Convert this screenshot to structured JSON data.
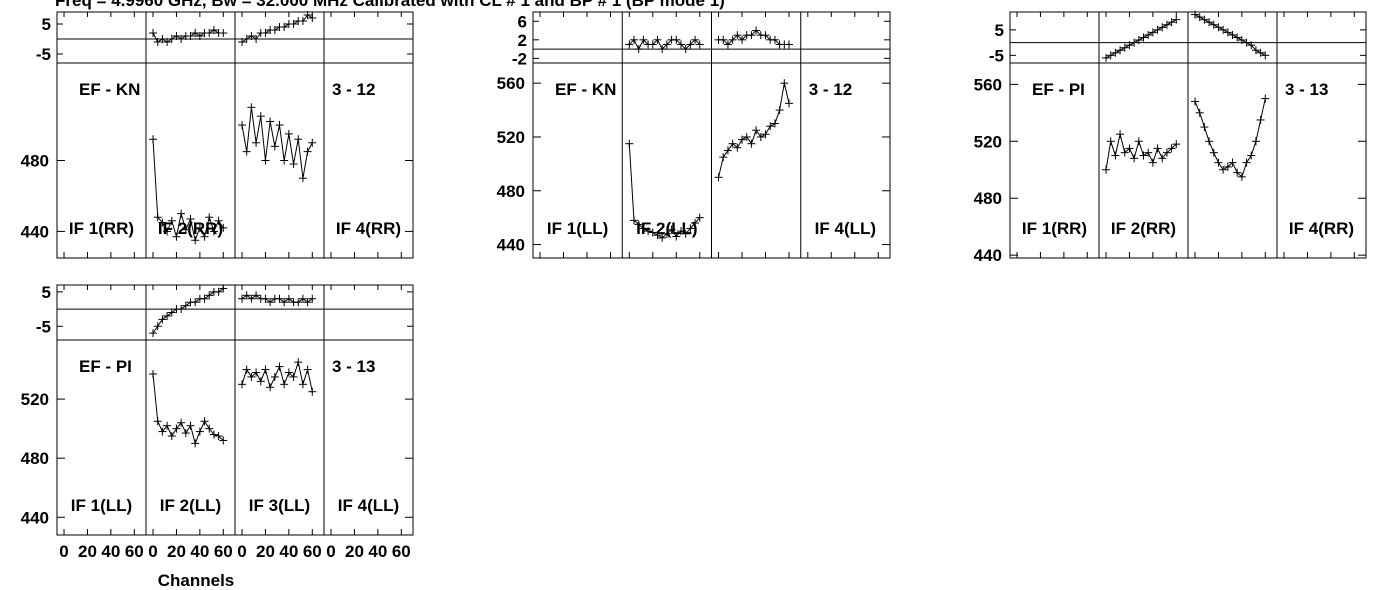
{
  "header": {
    "title": "Freq = 4.9960 GHz, Bw = 32.000 MHz  Calibrated with CL # 1 and BP # 1 (BP mode 1)"
  },
  "footer": {
    "xlabel": "Channels",
    "xtick_labels": [
      "0",
      "20",
      "40",
      "60"
    ]
  },
  "chart_data": [
    {
      "type": "line",
      "panel_id": "p1",
      "baseline_label": "EF - KN",
      "polarization": "RR",
      "corr_label": "3 - 12",
      "if_labels": [
        "IF 1(RR)",
        "IF 2(RR)",
        "IF 3(RR)",
        "IF 4(RR)"
      ],
      "if_labels_shown": [
        true,
        true,
        false,
        true
      ],
      "phase_ylim": [
        -8,
        9
      ],
      "phase_ticks": [
        5,
        -5
      ],
      "amp_ylim": [
        425,
        535
      ],
      "amp_ticks": [
        480,
        440
      ],
      "x": [
        0,
        4,
        8,
        12,
        16,
        20,
        24,
        28,
        32,
        36,
        40,
        44,
        48,
        52,
        56,
        60
      ],
      "series": [
        {
          "if": 2,
          "phase": [
            2,
            -1,
            0,
            -1,
            0,
            1,
            0,
            1,
            1,
            2,
            1,
            2,
            2,
            3,
            2,
            2
          ],
          "amp": [
            492,
            448,
            445,
            440,
            446,
            437,
            450,
            441,
            447,
            435,
            442,
            437,
            448,
            440,
            446,
            442
          ]
        },
        {
          "if": 3,
          "phase": [
            -1,
            0,
            1,
            0,
            2,
            2,
            3,
            3,
            4,
            4,
            5,
            5,
            6,
            6,
            8,
            7
          ],
          "amp": [
            500,
            485,
            510,
            490,
            505,
            480,
            502,
            488,
            500,
            480,
            495,
            478,
            492,
            470,
            485,
            490
          ]
        }
      ]
    },
    {
      "type": "line",
      "panel_id": "p2",
      "baseline_label": "EF - KN",
      "polarization": "LL",
      "corr_label": "3 - 12",
      "if_labels": [
        "IF 1(LL)",
        "IF 2(LL)",
        "IF 3(LL)",
        "IF 4(LL)"
      ],
      "if_labels_shown": [
        true,
        true,
        false,
        true
      ],
      "phase_ylim": [
        -3,
        8
      ],
      "phase_ticks": [
        6,
        2,
        -2
      ],
      "amp_ylim": [
        430,
        575
      ],
      "amp_ticks": [
        560,
        520,
        480,
        440
      ],
      "x": [
        0,
        4,
        8,
        12,
        16,
        20,
        24,
        28,
        32,
        36,
        40,
        44,
        48,
        52,
        56,
        60
      ],
      "series": [
        {
          "if": 2,
          "phase": [
            1,
            2,
            0,
            2,
            1,
            1,
            2,
            0,
            1,
            2,
            2,
            1,
            0,
            1,
            2,
            1
          ],
          "amp": [
            515,
            458,
            455,
            452,
            450,
            449,
            447,
            445,
            448,
            451,
            446,
            450,
            448,
            452,
            456,
            460
          ]
        },
        {
          "if": 3,
          "phase": [
            2,
            2,
            1,
            2,
            3,
            2,
            3,
            3,
            4,
            3,
            3,
            2,
            2,
            1,
            1,
            1
          ],
          "amp": [
            490,
            505,
            510,
            515,
            512,
            518,
            520,
            515,
            525,
            520,
            522,
            528,
            530,
            540,
            560,
            545
          ]
        }
      ]
    },
    {
      "type": "line",
      "panel_id": "p3",
      "baseline_label": "EF - PI",
      "polarization": "RR",
      "corr_label": "3 - 13",
      "if_labels": [
        "IF 1(RR)",
        "IF 2(RR)",
        "IF 3(RR)",
        "IF 4(RR)"
      ],
      "if_labels_shown": [
        true,
        true,
        false,
        true
      ],
      "phase_ylim": [
        -8,
        12
      ],
      "phase_ticks": [
        5,
        -5
      ],
      "amp_ylim": [
        438,
        575
      ],
      "amp_ticks": [
        560,
        520,
        480,
        440
      ],
      "x": [
        0,
        4,
        8,
        12,
        16,
        20,
        24,
        28,
        32,
        36,
        40,
        44,
        48,
        52,
        56,
        60
      ],
      "series": [
        {
          "if": 2,
          "phase": [
            -6,
            -5,
            -4,
            -3,
            -2,
            -1,
            0,
            1,
            2,
            3,
            4,
            5,
            6,
            7,
            8,
            9
          ],
          "amp": [
            500,
            520,
            510,
            525,
            512,
            515,
            508,
            520,
            510,
            512,
            505,
            515,
            508,
            512,
            515,
            518
          ]
        },
        {
          "if": 3,
          "phase": [
            11,
            10,
            9,
            8,
            7,
            6,
            5,
            4,
            3,
            2,
            1,
            0,
            -1,
            -3,
            -4,
            -5
          ],
          "amp": [
            548,
            540,
            530,
            520,
            512,
            505,
            500,
            502,
            505,
            498,
            495,
            505,
            510,
            520,
            535,
            550
          ]
        }
      ]
    },
    {
      "type": "line",
      "panel_id": "p4",
      "baseline_label": "EF - PI",
      "polarization": "LL",
      "corr_label": "3 - 13",
      "if_labels": [
        "IF 1(LL)",
        "IF 2(LL)",
        "IF 3(LL)",
        "IF 4(LL)"
      ],
      "if_labels_shown": [
        true,
        true,
        true,
        true
      ],
      "phase_ylim": [
        -9,
        7
      ],
      "phase_ticks": [
        5,
        -5
      ],
      "amp_ylim": [
        428,
        560
      ],
      "amp_ticks": [
        520,
        480,
        440
      ],
      "x": [
        0,
        4,
        8,
        12,
        16,
        20,
        24,
        28,
        32,
        36,
        40,
        44,
        48,
        52,
        56,
        60
      ],
      "series": [
        {
          "if": 2,
          "phase": [
            -7,
            -5,
            -3,
            -2,
            -1,
            0,
            0,
            1,
            2,
            2,
            3,
            3,
            4,
            5,
            5,
            6
          ],
          "amp": [
            537,
            505,
            498,
            502,
            495,
            500,
            504,
            497,
            502,
            490,
            498,
            505,
            500,
            496,
            495,
            492
          ]
        },
        {
          "if": 3,
          "phase": [
            3,
            4,
            3,
            4,
            3,
            3,
            2,
            3,
            3,
            2,
            3,
            2,
            2,
            3,
            2,
            3
          ],
          "amp": [
            530,
            540,
            535,
            538,
            532,
            540,
            528,
            535,
            542,
            530,
            538,
            535,
            545,
            530,
            540,
            525
          ]
        }
      ]
    }
  ]
}
